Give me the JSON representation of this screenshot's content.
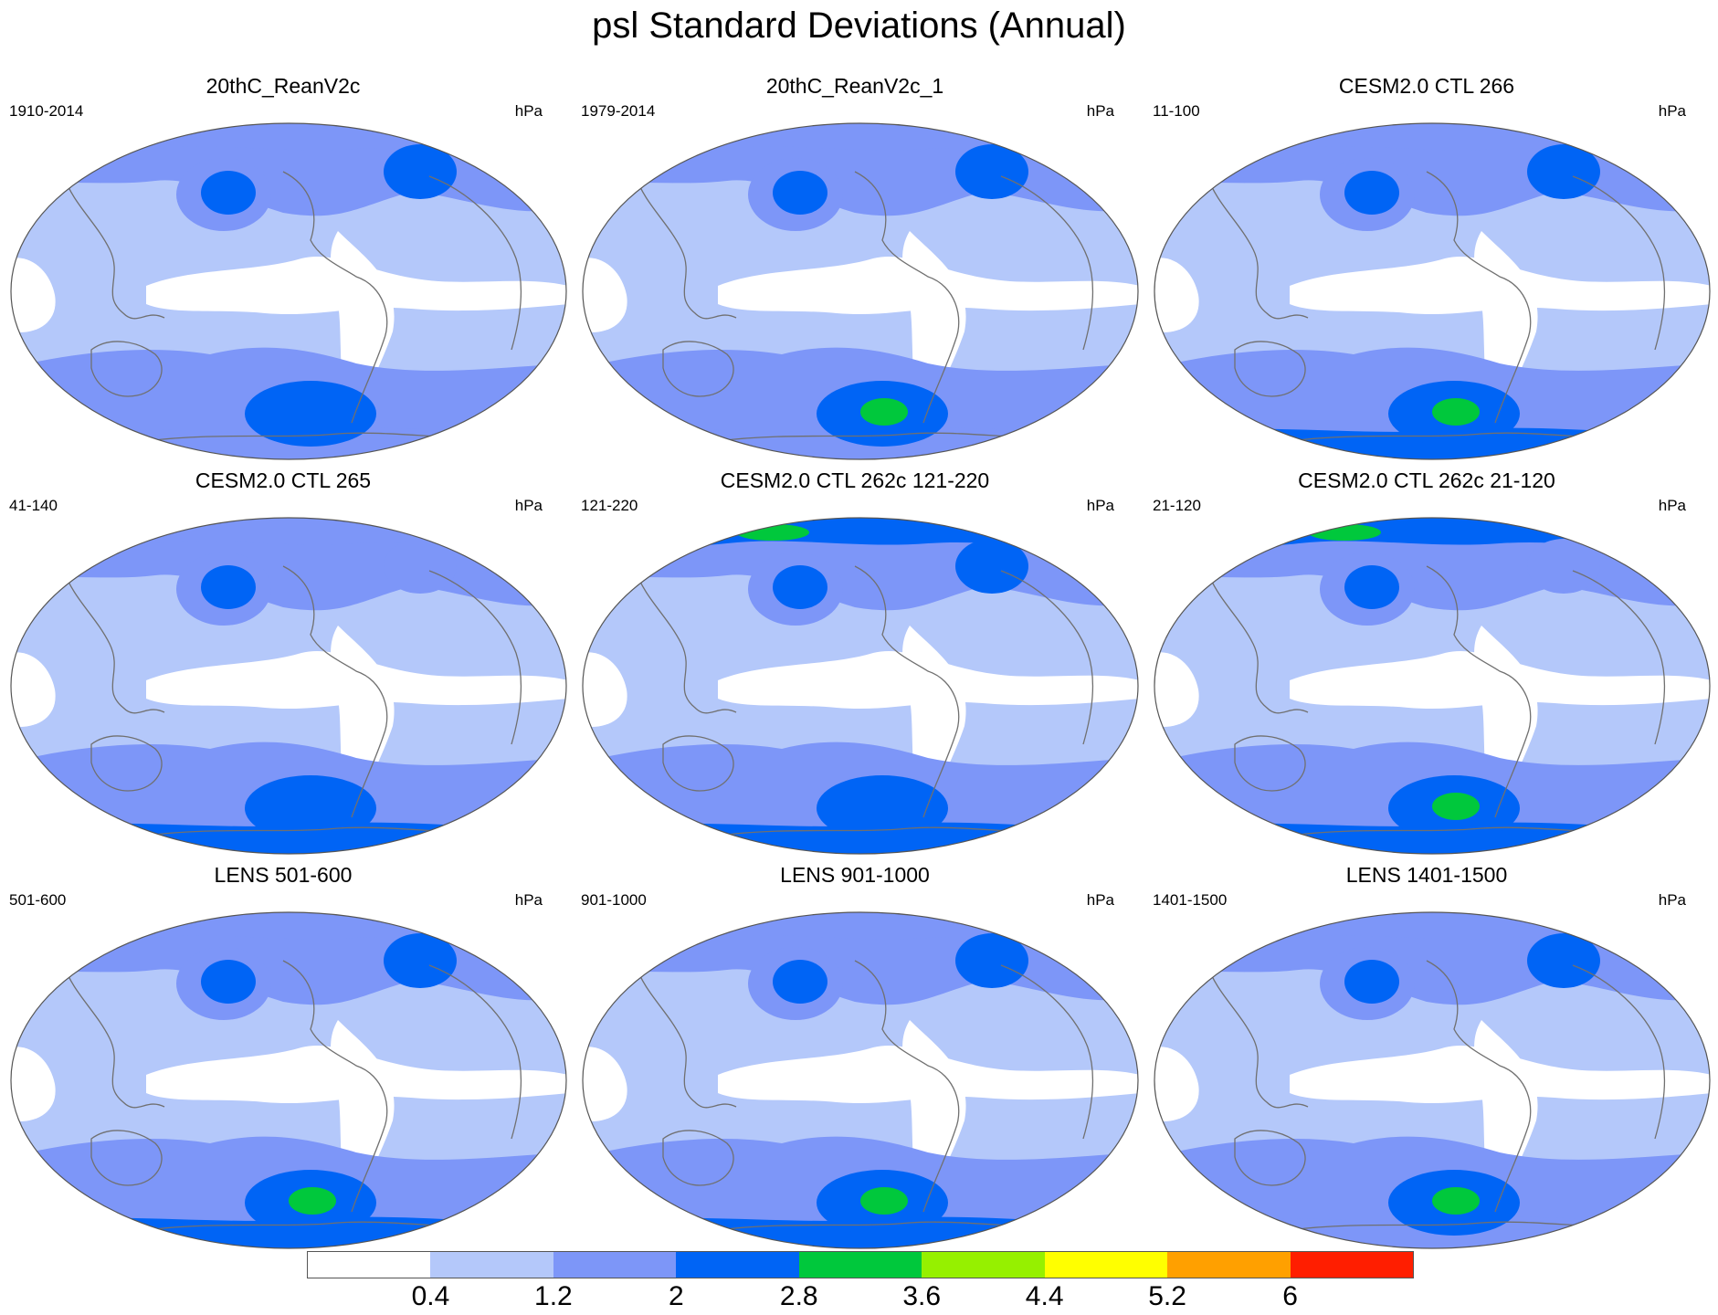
{
  "title": "psl Standard Deviations (Annual)",
  "unit_label": "hPa",
  "panels": [
    {
      "title": "20thC_ReanV2c",
      "period": "1910-2014",
      "highs": {
        "aleutian": 2,
        "north_atlantic": 2,
        "southern_pacific": 2,
        "antarctic_ring": 1,
        "arctic": 2
      }
    },
    {
      "title": "20thC_ReanV2c_1",
      "period": "1979-2014",
      "highs": {
        "aleutian": 2,
        "north_atlantic": 2,
        "southern_pacific": 3,
        "antarctic_ring": 1,
        "arctic": 2
      }
    },
    {
      "title": "CESM2.0 CTL 266",
      "period": "11-100",
      "highs": {
        "aleutian": 2,
        "north_atlantic": 2,
        "southern_pacific": 3,
        "antarctic_ring": 2,
        "arctic": 2
      }
    },
    {
      "title": "CESM2.0 CTL 265",
      "period": "41-140",
      "highs": {
        "aleutian": 2,
        "north_atlantic": 1,
        "southern_pacific": 2,
        "antarctic_ring": 2,
        "arctic": 2
      }
    },
    {
      "title": "CESM2.0 CTL 262c 121-220",
      "period": "121-220",
      "highs": {
        "aleutian": 2,
        "north_atlantic": 2,
        "southern_pacific": 2,
        "antarctic_ring": 2,
        "arctic": 3
      }
    },
    {
      "title": "CESM2.0 CTL 262c 21-120",
      "period": "21-120",
      "highs": {
        "aleutian": 2,
        "north_atlantic": 1,
        "southern_pacific": 3,
        "antarctic_ring": 2,
        "arctic": 3
      }
    },
    {
      "title": "LENS 501-600",
      "period": "501-600",
      "highs": {
        "aleutian": 2,
        "north_atlantic": 2,
        "southern_pacific": 3,
        "antarctic_ring": 2,
        "arctic": 2
      }
    },
    {
      "title": "LENS 901-1000",
      "period": "901-1000",
      "highs": {
        "aleutian": 2,
        "north_atlantic": 2,
        "southern_pacific": 3,
        "antarctic_ring": 2,
        "arctic": 2
      }
    },
    {
      "title": "LENS 1401-1500",
      "period": "1401-1500",
      "highs": {
        "aleutian": 2,
        "north_atlantic": 2,
        "southern_pacific": 3,
        "antarctic_ring": 1,
        "arctic": 2
      }
    }
  ],
  "colorbar": {
    "levels": [
      "0.4",
      "1.2",
      "2",
      "2.8",
      "3.6",
      "4.4",
      "5.2",
      "6"
    ],
    "colors": [
      "#ffffff",
      "#b4c8fa",
      "#7d96f8",
      "#0064f5",
      "#00c83c",
      "#96f000",
      "#ffff00",
      "#ffa000",
      "#ff1e00"
    ]
  },
  "map_colors": {
    "coast": "#707070",
    "border": "#555555"
  }
}
